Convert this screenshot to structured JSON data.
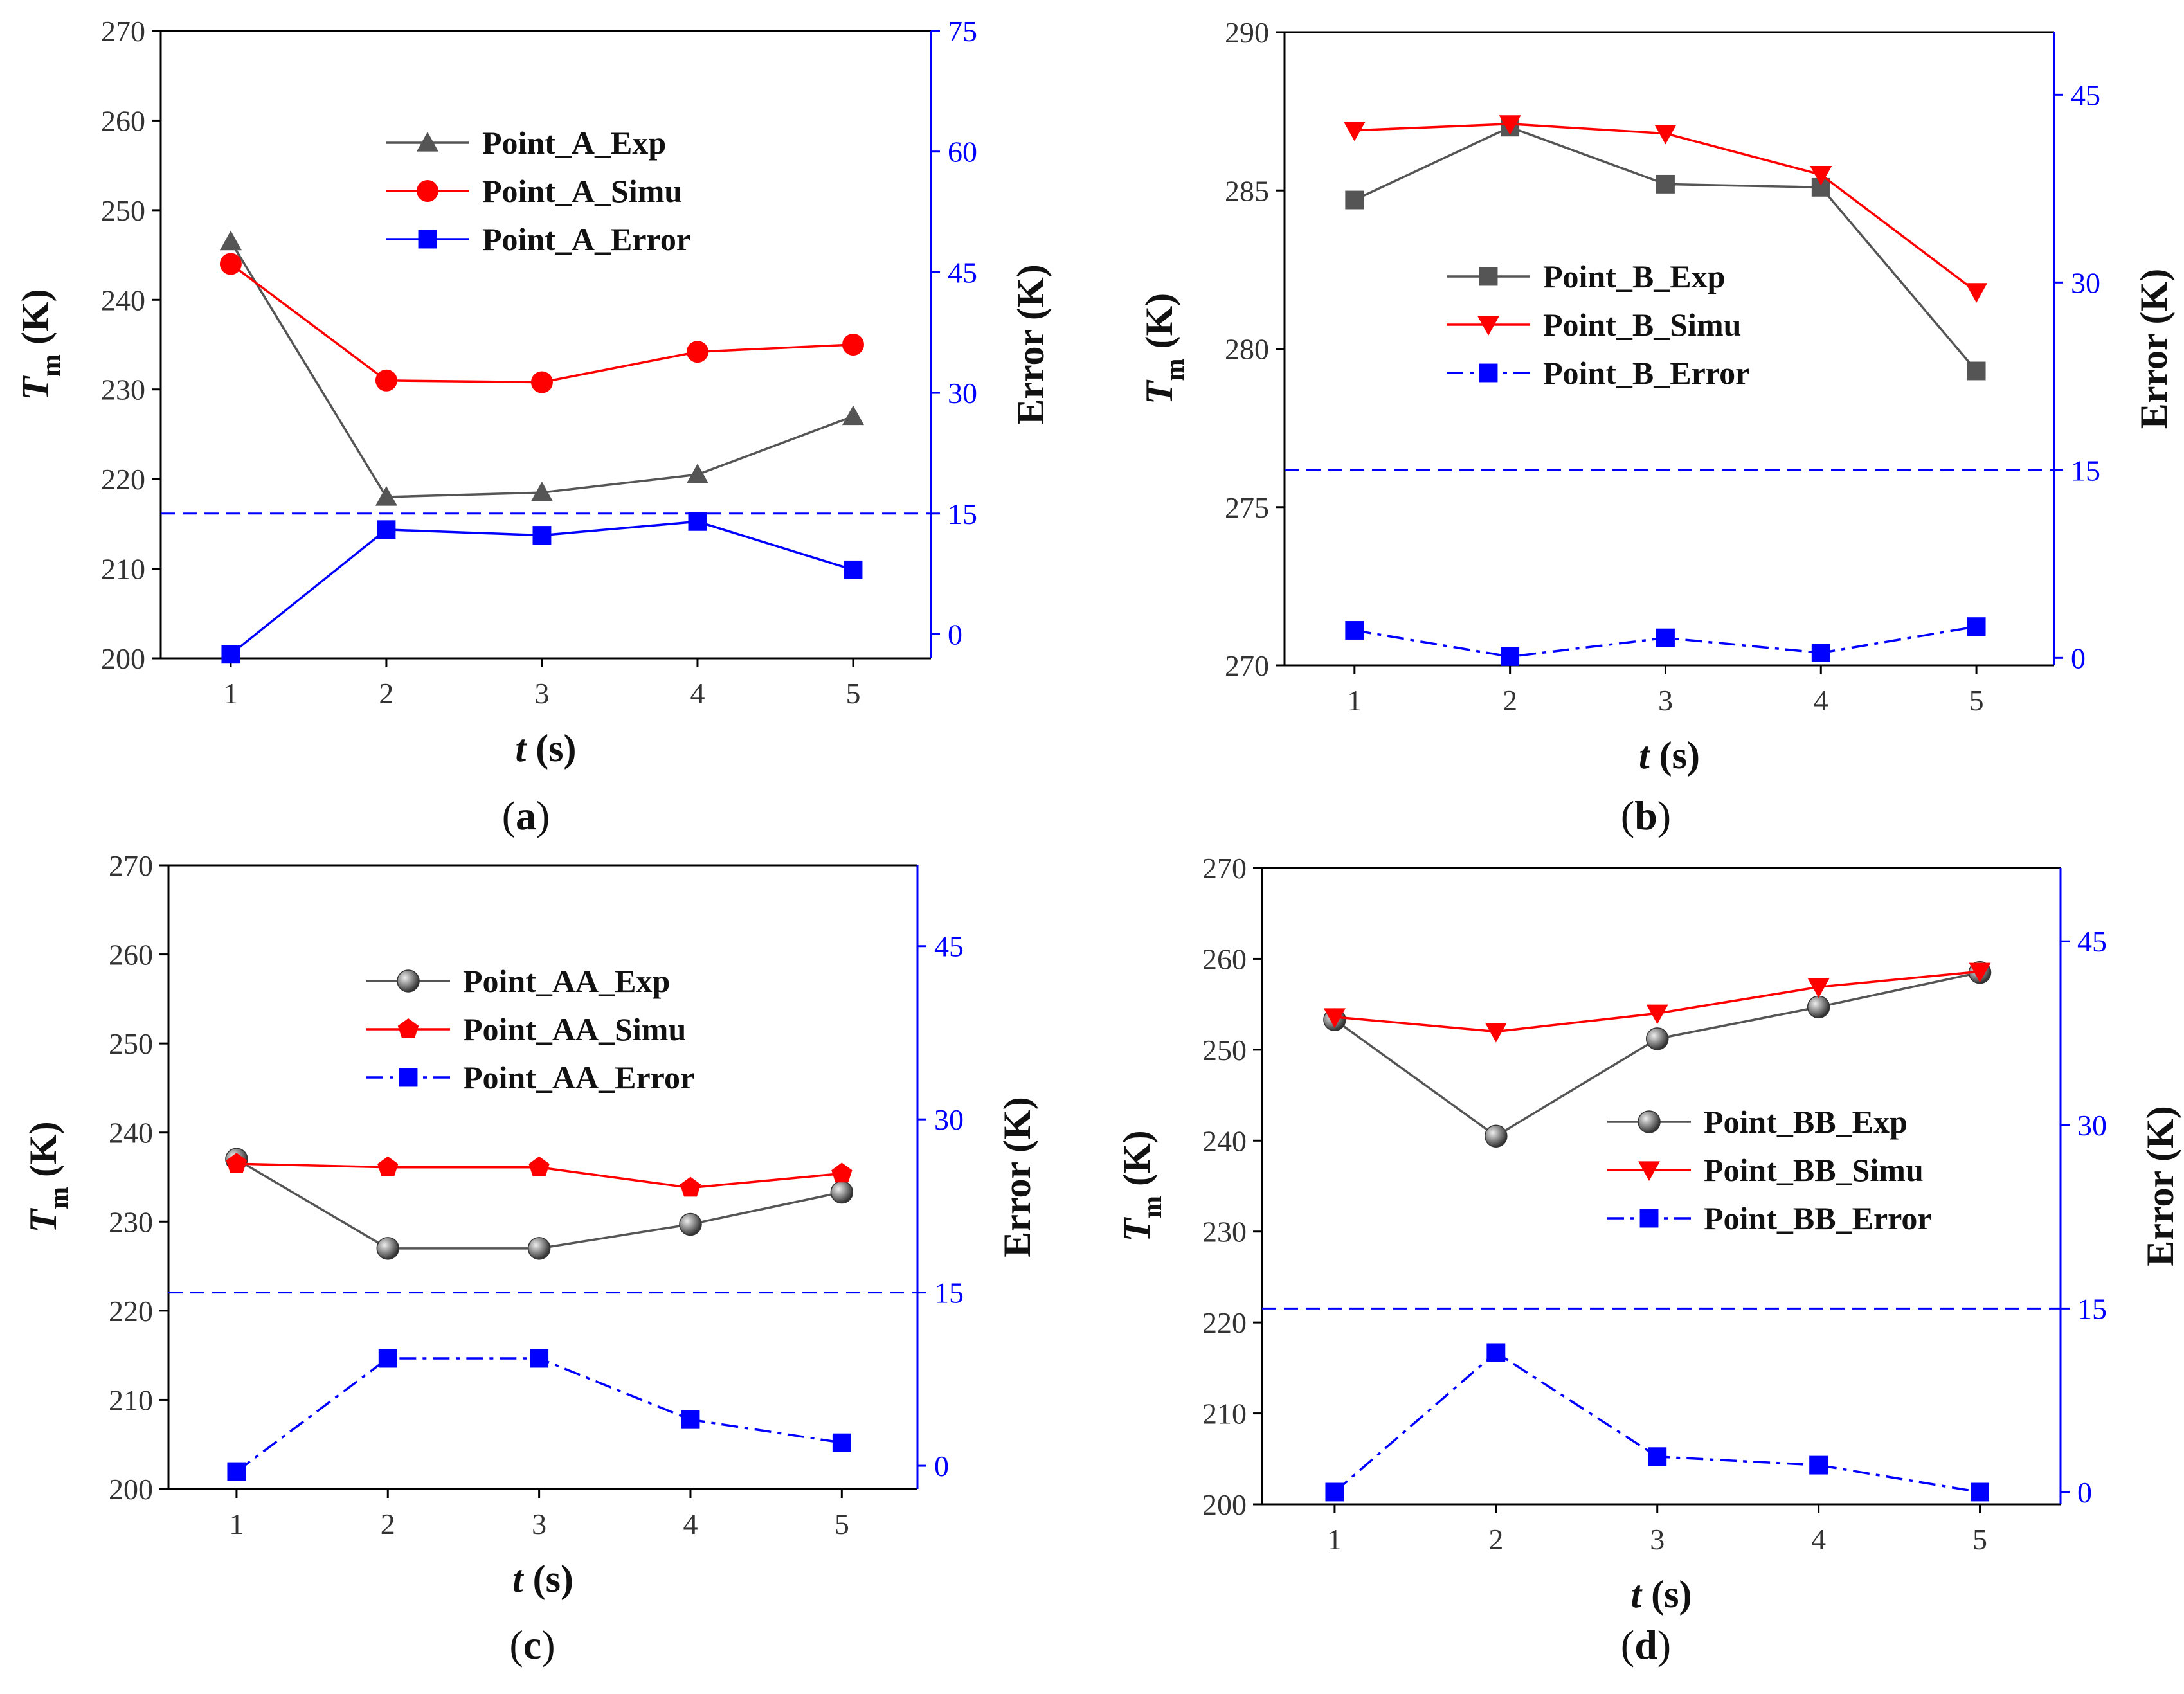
{
  "chart_data": [
    {
      "type": "line",
      "panel_label": "(a)",
      "xlabel": "t",
      "xunit": "(s)",
      "ylabel_main": "T",
      "ylabel_sub": "m",
      "ylabel_unit": "(K)",
      "y2label": "Error (K)",
      "x": [
        1,
        2,
        3,
        4,
        5
      ],
      "xticks": [
        "1",
        "2",
        "3",
        "4",
        "5"
      ],
      "ylim": [
        200,
        270
      ],
      "yticks": [
        "200",
        "210",
        "220",
        "230",
        "240",
        "250",
        "260",
        "270"
      ],
      "y2lim": [
        -3,
        75
      ],
      "y2ticks": [
        "0",
        "15",
        "30",
        "45",
        "60",
        "75"
      ],
      "threshold": 15,
      "legend_position": "upper-center",
      "series": [
        {
          "name": "Point_A_Exp",
          "axis": "left",
          "color": "#555555",
          "marker": "triangle-up",
          "dash": "solid",
          "values": [
            246.5,
            218,
            218.5,
            220.5,
            227
          ]
        },
        {
          "name": "Point_A_Simu",
          "axis": "left",
          "color": "#ff0000",
          "marker": "circle",
          "dash": "solid",
          "values": [
            244,
            231,
            230.8,
            234.2,
            235
          ]
        },
        {
          "name": "Point_A_Error",
          "axis": "right",
          "color": "#0000ff",
          "marker": "square",
          "dash": "solid",
          "values": [
            -2.5,
            13,
            12.3,
            14,
            8
          ]
        }
      ]
    },
    {
      "type": "line",
      "panel_label": "(b)",
      "xlabel": "t",
      "xunit": "(s)",
      "ylabel_main": "T",
      "ylabel_sub": "m",
      "ylabel_unit": "(K)",
      "y2label": "Error (K)",
      "x": [
        1,
        2,
        3,
        4,
        5
      ],
      "xticks": [
        "1",
        "2",
        "3",
        "4",
        "5"
      ],
      "ylim": [
        270,
        290
      ],
      "yticks": [
        "270",
        "275",
        "280",
        "285",
        "290"
      ],
      "y2lim": [
        -0.6,
        50
      ],
      "y2ticks": [
        "0",
        "15",
        "30",
        "45"
      ],
      "threshold": 15,
      "legend_position": "center",
      "series": [
        {
          "name": "Point_B_Exp",
          "axis": "left",
          "color": "#555555",
          "marker": "square",
          "dash": "solid",
          "values": [
            284.7,
            287,
            285.2,
            285.1,
            279.3
          ]
        },
        {
          "name": "Point_B_Simu",
          "axis": "left",
          "color": "#ff0000",
          "marker": "triangle-down",
          "dash": "solid",
          "values": [
            286.9,
            287.1,
            286.8,
            285.5,
            281.8
          ]
        },
        {
          "name": "Point_B_Error",
          "axis": "right",
          "color": "#0000ff",
          "marker": "square",
          "dash": "dashdot",
          "values": [
            2.2,
            0.1,
            1.6,
            0.4,
            2.5
          ]
        }
      ]
    },
    {
      "type": "line",
      "panel_label": "(c)",
      "xlabel": "t",
      "xunit": "(s)",
      "ylabel_main": "T",
      "ylabel_sub": "m",
      "ylabel_unit": "(K)",
      "y2label": "Error (K)",
      "x": [
        1,
        2,
        3,
        4,
        5
      ],
      "xticks": [
        "1",
        "2",
        "3",
        "4",
        "5"
      ],
      "ylim": [
        200,
        270
      ],
      "yticks": [
        "200",
        "210",
        "220",
        "230",
        "240",
        "250",
        "260",
        "270"
      ],
      "y2lim": [
        -2,
        52
      ],
      "y2ticks": [
        "0",
        "15",
        "30",
        "45"
      ],
      "threshold": 15,
      "legend_position": "upper-center",
      "series": [
        {
          "name": "Point_AA_Exp",
          "axis": "left",
          "color": "#555555",
          "marker": "sphere",
          "dash": "solid",
          "values": [
            237,
            227,
            227,
            229.7,
            233.3
          ]
        },
        {
          "name": "Point_AA_Simu",
          "axis": "left",
          "color": "#ff0000",
          "marker": "pentagon",
          "dash": "solid",
          "values": [
            236.5,
            236.1,
            236.1,
            233.8,
            235.4
          ]
        },
        {
          "name": "Point_AA_Error",
          "axis": "right",
          "color": "#0000ff",
          "marker": "square",
          "dash": "dashdot",
          "values": [
            -0.5,
            9.3,
            9.3,
            4,
            2
          ]
        }
      ]
    },
    {
      "type": "line",
      "panel_label": "(d)",
      "xlabel": "t",
      "xunit": "(s)",
      "ylabel_main": "T",
      "ylabel_sub": "m",
      "ylabel_unit": "(K)",
      "y2label": "Error (K)",
      "x": [
        1,
        2,
        3,
        4,
        5
      ],
      "xticks": [
        "1",
        "2",
        "3",
        "4",
        "5"
      ],
      "ylim": [
        200,
        270
      ],
      "yticks": [
        "200",
        "210",
        "220",
        "230",
        "240",
        "250",
        "260",
        "270"
      ],
      "y2lim": [
        -1,
        51
      ],
      "y2ticks": [
        "0",
        "15",
        "30",
        "45"
      ],
      "threshold": 15,
      "legend_position": "center-right",
      "series": [
        {
          "name": "Point_BB_Exp",
          "axis": "left",
          "color": "#555555",
          "marker": "sphere",
          "dash": "solid",
          "values": [
            253.3,
            240.5,
            251.2,
            254.7,
            258.5
          ]
        },
        {
          "name": "Point_BB_Simu",
          "axis": "left",
          "color": "#ff0000",
          "marker": "triangle-down",
          "dash": "solid",
          "values": [
            253.6,
            252,
            254,
            256.9,
            258.6
          ]
        },
        {
          "name": "Point_BB_Error",
          "axis": "right",
          "color": "#0000ff",
          "marker": "square",
          "dash": "dashdot",
          "values": [
            0,
            11.4,
            2.9,
            2.2,
            0
          ]
        }
      ]
    }
  ]
}
